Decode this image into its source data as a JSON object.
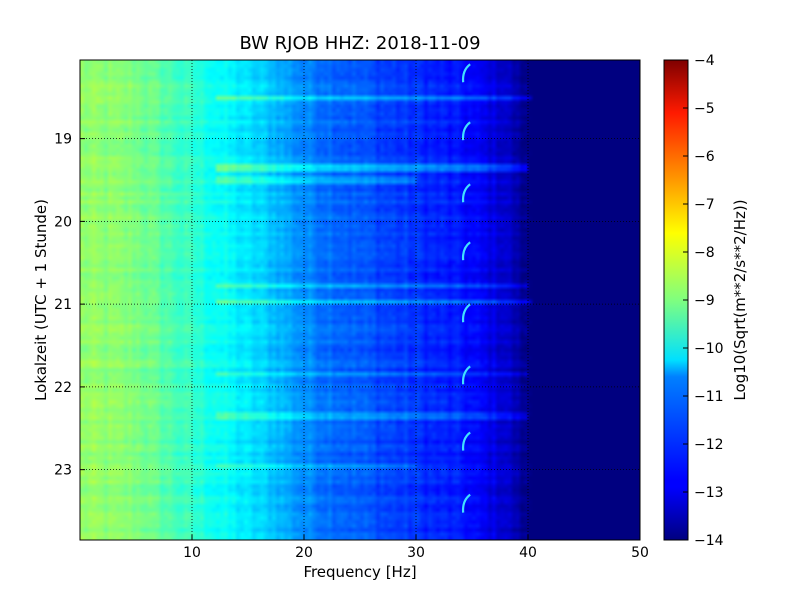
{
  "chart_data": {
    "type": "heatmap",
    "title": "BW RJOB HHZ: 2018-11-09",
    "xlabel": "Frequency [Hz]",
    "ylabel": "Lokalzeit (UTC + 1 Stunde)",
    "xlim": [
      0,
      50
    ],
    "ylim_hours": [
      18.05,
      23.85
    ],
    "y_inverted": true,
    "grid": true,
    "x_ticks": [
      {
        "value": 10,
        "label": "10"
      },
      {
        "value": 20,
        "label": "20"
      },
      {
        "value": 30,
        "label": "30"
      },
      {
        "value": 40,
        "label": "40"
      },
      {
        "value": 50,
        "label": "50"
      }
    ],
    "y_ticks": [
      {
        "value": 19,
        "label": "19"
      },
      {
        "value": 20,
        "label": "20"
      },
      {
        "value": 21,
        "label": "21"
      },
      {
        "value": 22,
        "label": "22"
      },
      {
        "value": 23,
        "label": "23"
      }
    ],
    "colorbar": {
      "label": "Log10(Sqrt(m**2/s**2/Hz))",
      "vmin": -14,
      "vmax": -4,
      "colormap": "jet",
      "ticks": [
        {
          "value": -4,
          "label": "−4"
        },
        {
          "value": -5,
          "label": "−5"
        },
        {
          "value": -6,
          "label": "−6"
        },
        {
          "value": -7,
          "label": "−7"
        },
        {
          "value": -8,
          "label": "−8"
        },
        {
          "value": -9,
          "label": "−9"
        },
        {
          "value": -10,
          "label": "−10"
        },
        {
          "value": -11,
          "label": "−11"
        },
        {
          "value": -12,
          "label": "−12"
        },
        {
          "value": -13,
          "label": "−13"
        },
        {
          "value": -14,
          "label": "−14"
        }
      ]
    },
    "spectrum_profile": {
      "frequency_hz": [
        0,
        5,
        10,
        14,
        17,
        20,
        25,
        30,
        34,
        38,
        40,
        50
      ],
      "level": [
        -8.8,
        -9.0,
        -9.8,
        -10.4,
        -10.8,
        -11.4,
        -11.9,
        -12.3,
        -12.6,
        -13.2,
        -14.0,
        -14.0
      ]
    },
    "horizontal_bands_hours": [
      {
        "hour": 18.52,
        "level_offset": 0.9,
        "fmax_hz": 42
      },
      {
        "hour": 19.35,
        "level_offset": 1.0,
        "fmax_hz": 40
      },
      {
        "hour": 19.5,
        "level_offset": 0.6,
        "fmax_hz": 30
      },
      {
        "hour": 20.78,
        "level_offset": 0.8,
        "fmax_hz": 40
      },
      {
        "hour": 20.98,
        "level_offset": 1.0,
        "fmax_hz": 42
      },
      {
        "hour": 21.85,
        "level_offset": 0.6,
        "fmax_hz": 40
      },
      {
        "hour": 22.35,
        "level_offset": 0.6,
        "fmax_hz": 40
      },
      {
        "hour": 22.95,
        "level_offset": 0.5,
        "fmax_hz": 30
      }
    ],
    "hook_signals_hours": [
      18.15,
      18.85,
      19.6,
      20.3,
      21.05,
      21.8,
      22.6,
      23.35
    ],
    "hook_frequency_hz": 34.3
  }
}
